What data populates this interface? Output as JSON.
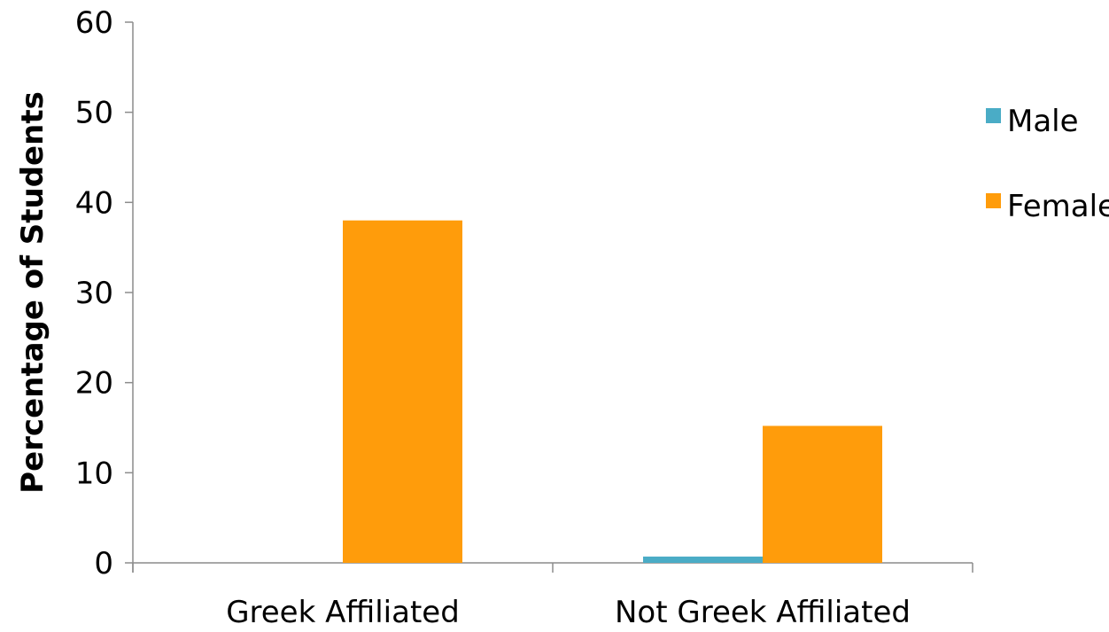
{
  "chart_data": {
    "type": "bar",
    "title": "",
    "xlabel": "",
    "ylabel": "Percentage of Students",
    "categories": [
      "Greek Affiliated",
      "Not Greek Affiliated"
    ],
    "series": [
      {
        "name": "Male",
        "color": "#4AACC6",
        "values": [
          0,
          0.7
        ]
      },
      {
        "name": "Female",
        "color": "#FF9C0B",
        "values": [
          38,
          15.2
        ]
      }
    ],
    "ylim": [
      0,
      60
    ],
    "yticks": [
      "0",
      "10",
      "20",
      "30",
      "40",
      "50",
      "60"
    ],
    "grid": false,
    "legend_position": "right"
  }
}
